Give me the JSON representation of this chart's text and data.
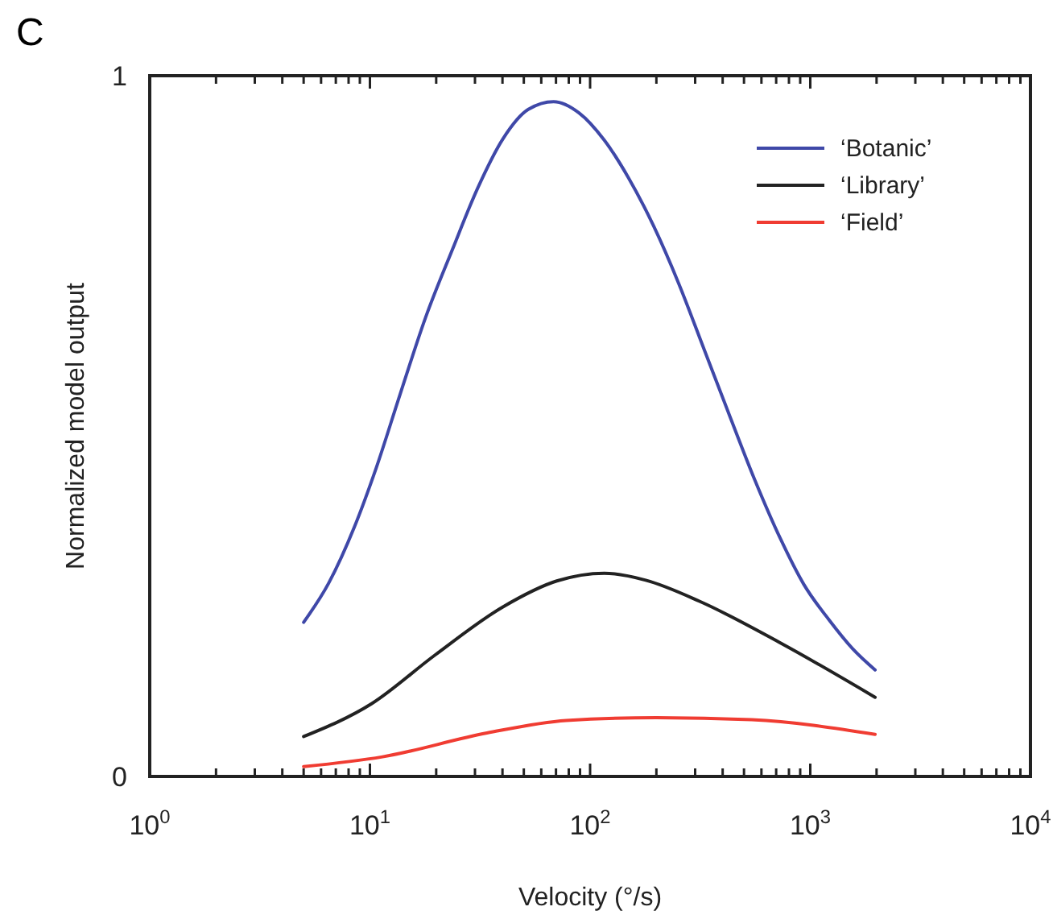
{
  "chart_data": {
    "type": "line",
    "title": "C",
    "xlabel": "Velocity (°/s)",
    "ylabel": "Normalized model output",
    "log": "x",
    "xlim": [
      1,
      10000
    ],
    "ylim": [
      0,
      1
    ],
    "yticks": [
      0,
      1
    ],
    "xticks": [
      {
        "value": 1,
        "label": "10$^{0}$"
      },
      {
        "value": 2,
        "label": null
      },
      {
        "value": 3,
        "label": null
      },
      {
        "value": 4,
        "label": null
      },
      {
        "value": 5,
        "label": null
      },
      {
        "value": 6,
        "label": null
      },
      {
        "value": 7,
        "label": null
      },
      {
        "value": 8,
        "label": null
      },
      {
        "value": 9,
        "label": null
      },
      {
        "value": 10,
        "label": "10$^{1}$"
      },
      {
        "value": 20,
        "label": null
      },
      {
        "value": 30,
        "label": null
      },
      {
        "value": 40,
        "label": null
      },
      {
        "value": 50,
        "label": null
      },
      {
        "value": 60,
        "label": null
      },
      {
        "value": 70,
        "label": null
      },
      {
        "value": 80,
        "label": null
      },
      {
        "value": 90,
        "label": null
      },
      {
        "value": 100,
        "label": "10$^{2}$"
      },
      {
        "value": 200,
        "label": null
      },
      {
        "value": 300,
        "label": null
      },
      {
        "value": 400,
        "label": null
      },
      {
        "value": 500,
        "label": null
      },
      {
        "value": 600,
        "label": null
      },
      {
        "value": 700,
        "label": null
      },
      {
        "value": 800,
        "label": null
      },
      {
        "value": 900,
        "label": null
      },
      {
        "value": 1000,
        "label": "10$^{3}$"
      },
      {
        "value": 2000,
        "label": null
      },
      {
        "value": 3000,
        "label": null
      },
      {
        "value": 4000,
        "label": null
      },
      {
        "value": 5000,
        "label": null
      },
      {
        "value": 6000,
        "label": null
      },
      {
        "value": 7000,
        "label": null
      },
      {
        "value": 8000,
        "label": null
      },
      {
        "value": 9000,
        "label": null
      },
      {
        "value": 10000,
        "label": "10$^{4}$"
      }
    ],
    "legend": "top right",
    "line_style": "solid",
    "marker": "none",
    "series": [
      {
        "name": "‘Botanic’",
        "color": "#3f48a8",
        "x": [
          5,
          6.5,
          8.5,
          10.7,
          13.7,
          17.9,
          23.7,
          30.8,
          40.2,
          52.4,
          68.3,
          89,
          116,
          149,
          194,
          253,
          330,
          430,
          560,
          730,
          935,
          1220,
          1560,
          1970
        ],
        "values": [
          0.22,
          0.276,
          0.356,
          0.441,
          0.545,
          0.655,
          0.752,
          0.839,
          0.91,
          0.952,
          0.963,
          0.947,
          0.908,
          0.855,
          0.786,
          0.703,
          0.609,
          0.515,
          0.423,
          0.34,
          0.274,
          0.223,
          0.182,
          0.152
        ]
      },
      {
        "name": "‘Library’",
        "color": "#222222",
        "x": [
          5,
          10.2,
          19.7,
          40.2,
          70.6,
          116,
          179,
          314,
          718,
          1970
        ],
        "values": [
          0.057,
          0.104,
          0.173,
          0.242,
          0.279,
          0.29,
          0.28,
          0.25,
          0.192,
          0.113
        ]
      },
      {
        "name": "‘Field’",
        "color": "#f03c32",
        "x": [
          5,
          11.4,
          34,
          78,
          200,
          542,
          1970
        ],
        "values": [
          0.014,
          0.028,
          0.062,
          0.08,
          0.084,
          0.081,
          0.06
        ]
      }
    ]
  }
}
